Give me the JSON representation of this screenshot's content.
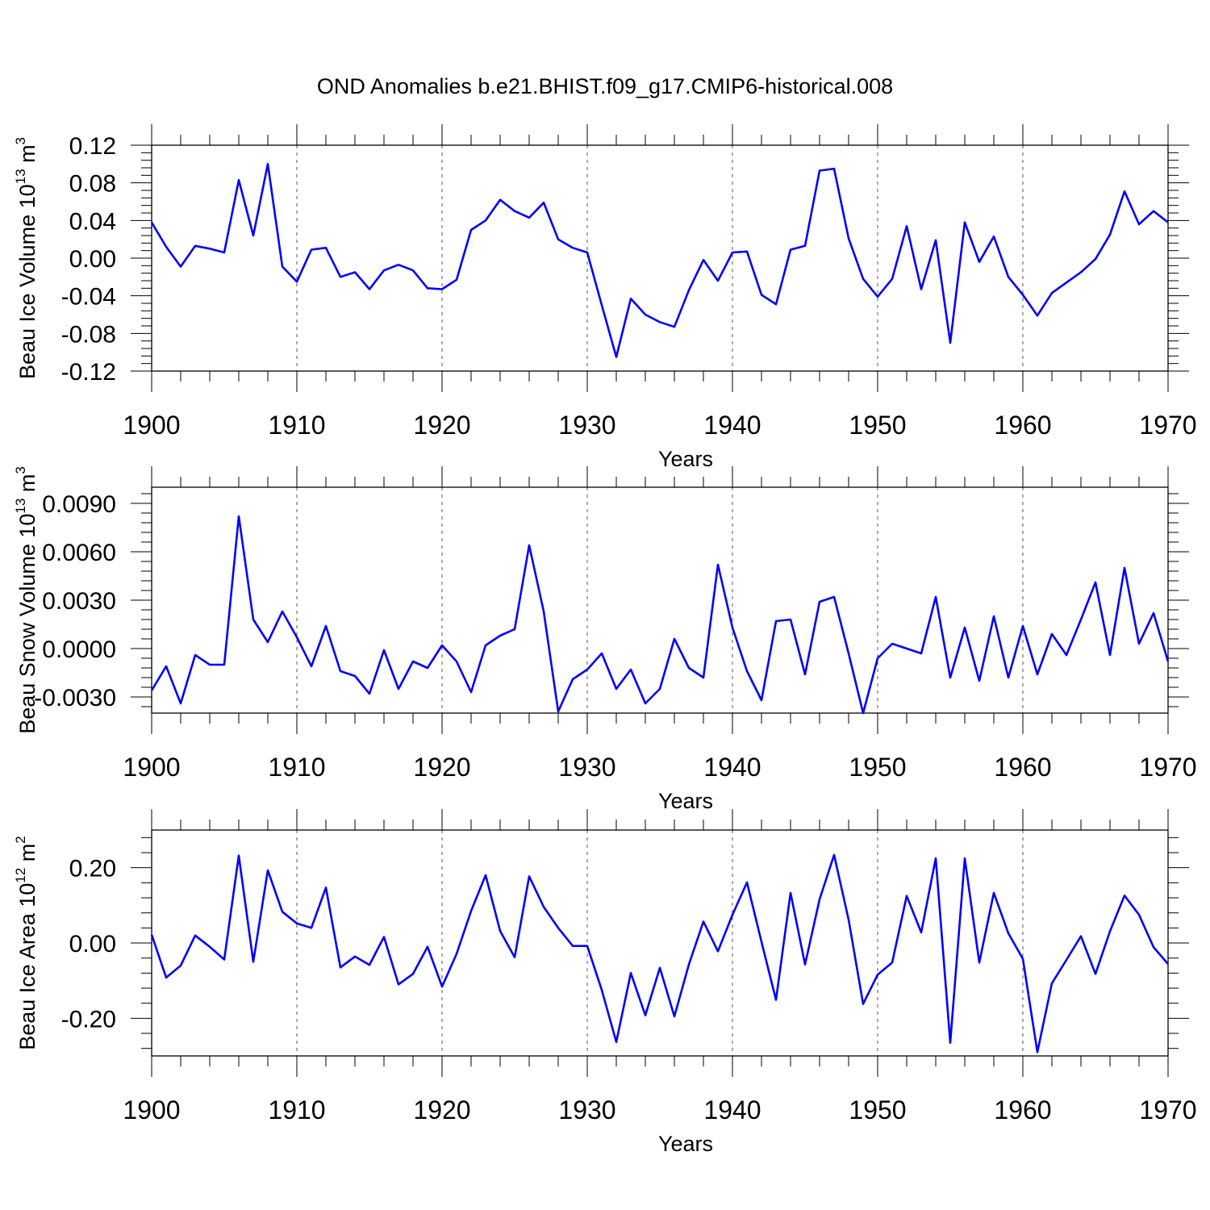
{
  "title": "OND Anomalies b.e21.BHIST.f09_g17.CMIP6-historical.008",
  "line_color": "#0000ff",
  "chart_data": [
    {
      "type": "line",
      "name": "ice-volume",
      "ylabel": "Beau Ice Volume 10",
      "ylabel_exp": "13",
      "ylabel_unit": " m",
      "ylabel_unit_exp": "3",
      "xlabel": "Years",
      "xlim": [
        1900,
        1970
      ],
      "ylim": [
        -0.12,
        0.12
      ],
      "x_ticks": [
        "1900",
        "1910",
        "1920",
        "1930",
        "1940",
        "1950",
        "1960",
        "1970"
      ],
      "y_ticks": [
        {
          "value": 0.12,
          "label": "0.12"
        },
        {
          "value": 0.08,
          "label": "0.08"
        },
        {
          "value": 0.04,
          "label": "0.04"
        },
        {
          "value": 0.0,
          "label": "0.00"
        },
        {
          "value": -0.04,
          "label": "-0.04"
        },
        {
          "value": -0.08,
          "label": "-0.08"
        },
        {
          "value": -0.12,
          "label": "-0.12"
        }
      ],
      "start_year": 1900,
      "values": [
        0.038,
        0.012,
        -0.009,
        0.013,
        0.01,
        0.006,
        0.083,
        0.024,
        0.1,
        -0.009,
        -0.025,
        0.009,
        0.011,
        -0.02,
        -0.015,
        -0.033,
        -0.013,
        -0.007,
        -0.013,
        -0.032,
        -0.033,
        -0.023,
        0.03,
        0.04,
        0.062,
        0.05,
        0.043,
        0.059,
        0.02,
        0.011,
        0.006,
        -0.05,
        -0.105,
        -0.043,
        -0.06,
        -0.068,
        -0.073,
        -0.034,
        -0.002,
        -0.024,
        0.006,
        0.007,
        -0.039,
        -0.049,
        0.009,
        0.013,
        0.093,
        0.095,
        0.021,
        -0.022,
        -0.041,
        -0.022,
        0.034,
        -0.033,
        0.019,
        -0.09,
        0.038,
        -0.004,
        0.023,
        -0.02,
        -0.039,
        -0.061,
        -0.037,
        -0.026,
        -0.015,
        -0.001,
        0.025,
        0.071,
        0.036,
        0.05,
        0.038
      ]
    },
    {
      "type": "line",
      "name": "snow-volume",
      "ylabel": "Beau Snow Volume 10",
      "ylabel_exp": "13",
      "ylabel_unit": " m",
      "ylabel_unit_exp": "3",
      "xlabel": "Years",
      "xlim": [
        1900,
        1970
      ],
      "ylim": [
        -0.004,
        0.01
      ],
      "x_ticks": [
        "1900",
        "1910",
        "1920",
        "1930",
        "1940",
        "1950",
        "1960",
        "1970"
      ],
      "y_ticks": [
        {
          "value": 0.009,
          "label": "0.0090"
        },
        {
          "value": 0.006,
          "label": "0.0060"
        },
        {
          "value": 0.003,
          "label": "0.0030"
        },
        {
          "value": 0.0,
          "label": "0.0000"
        },
        {
          "value": -0.003,
          "label": "-0.0030"
        }
      ],
      "start_year": 1900,
      "values": [
        -0.0026,
        -0.0011,
        -0.0034,
        -0.0004,
        -0.001,
        -0.001,
        0.0082,
        0.0018,
        0.0004,
        0.0023,
        0.0007,
        -0.0011,
        0.0014,
        -0.0014,
        -0.0017,
        -0.0028,
        -0.0001,
        -0.0025,
        -0.0008,
        -0.0012,
        0.0002,
        -0.0008,
        -0.0027,
        0.0002,
        0.0008,
        0.0012,
        0.0064,
        0.0023,
        -0.0039,
        -0.0019,
        -0.0013,
        -0.0003,
        -0.0025,
        -0.0013,
        -0.0034,
        -0.0025,
        0.0006,
        -0.0012,
        -0.0018,
        0.0052,
        0.0013,
        -0.0014,
        -0.0032,
        0.0017,
        0.0018,
        -0.0016,
        0.0029,
        0.0032,
        -0.0003,
        -0.004,
        -0.0006,
        0.0003,
        0.0,
        -0.0003,
        0.0032,
        -0.0018,
        0.0013,
        -0.002,
        0.002,
        -0.0018,
        0.0014,
        -0.0016,
        0.0009,
        -0.0004,
        0.0018,
        0.0041,
        -0.0004,
        0.005,
        0.0003,
        0.0022,
        -0.0008
      ]
    },
    {
      "type": "line",
      "name": "ice-area",
      "ylabel": "Beau Ice Area 10",
      "ylabel_exp": "12",
      "ylabel_unit": " m",
      "ylabel_unit_exp": "2",
      "xlabel": "Years",
      "xlim": [
        1900,
        1970
      ],
      "ylim": [
        -0.3,
        0.3
      ],
      "x_ticks": [
        "1900",
        "1910",
        "1920",
        "1930",
        "1940",
        "1950",
        "1960",
        "1970"
      ],
      "y_ticks": [
        {
          "value": 0.2,
          "label": "0.20"
        },
        {
          "value": 0.0,
          "label": "0.00"
        },
        {
          "value": -0.2,
          "label": "-0.20"
        }
      ],
      "start_year": 1900,
      "values": [
        0.022,
        -0.092,
        -0.06,
        0.02,
        -0.01,
        -0.044,
        0.232,
        -0.05,
        0.193,
        0.083,
        0.052,
        0.04,
        0.147,
        -0.065,
        -0.036,
        -0.058,
        0.016,
        -0.11,
        -0.082,
        -0.01,
        -0.116,
        -0.029,
        0.085,
        0.18,
        0.032,
        -0.038,
        0.177,
        0.096,
        0.04,
        -0.008,
        -0.008,
        -0.125,
        -0.263,
        -0.08,
        -0.192,
        -0.066,
        -0.195,
        -0.057,
        0.057,
        -0.022,
        0.075,
        0.161,
        0.003,
        -0.151,
        0.133,
        -0.057,
        0.116,
        0.234,
        0.062,
        -0.162,
        -0.084,
        -0.052,
        0.125,
        0.028,
        0.225,
        -0.265,
        0.225,
        -0.052,
        0.133,
        0.026,
        -0.042,
        -0.29,
        -0.107,
        -0.045,
        0.018,
        -0.082,
        0.031,
        0.126,
        0.075,
        -0.011,
        -0.056
      ]
    }
  ]
}
